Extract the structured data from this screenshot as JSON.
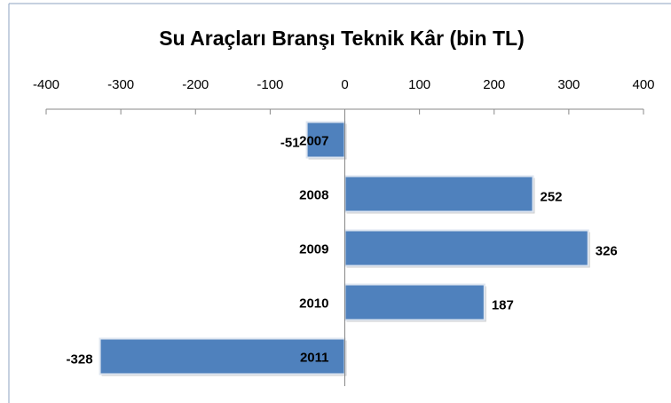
{
  "chart_data": {
    "type": "bar",
    "orientation": "horizontal",
    "title": "Su Araçları Branşı Teknik Kâr (bin TL)",
    "categories": [
      "2007",
      "2008",
      "2009",
      "2010",
      "2011"
    ],
    "values": [
      -51,
      252,
      326,
      187,
      -328
    ],
    "color": "#4f81bd",
    "xlim": [
      -400,
      400
    ],
    "xticks": [
      -400,
      -300,
      -200,
      -100,
      0,
      100,
      200,
      300,
      400
    ],
    "axis_position": "top"
  }
}
